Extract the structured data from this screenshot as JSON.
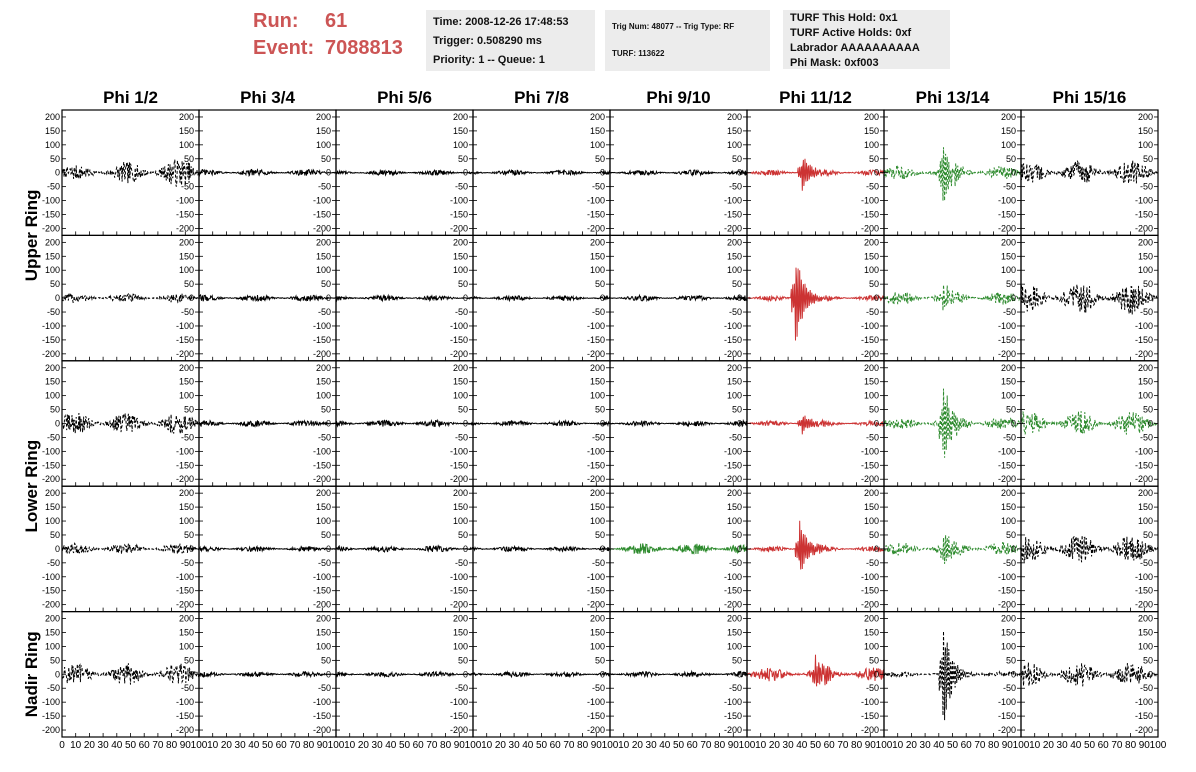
{
  "header": {
    "run_label": "Run:",
    "run_value": "61",
    "event_label": "Event:",
    "event_value": "7088813",
    "time_line": "Time: 2008-12-26 17:48:53",
    "trigger_line": "Trigger: 0.508290 ms",
    "priority_line": "Priority: 1 -- Queue: 1",
    "trig_line": "Trig Num: 48077 -- Trig Type: RF",
    "turf_line": "TURF: 113622",
    "turf_hold_line": "TURF This Hold: 0x1",
    "turf_active_line": "TURF Active Holds: 0xf",
    "labrador_line": "Labrador AAAAAAAAAA",
    "phi_mask_line": "Phi Mask: 0xf003"
  },
  "colors": {
    "normal": "#000000",
    "triggered": "#cc3333",
    "l1": "#2e8b2e"
  },
  "chart_data": {
    "type": "line",
    "columns": [
      "Phi 1/2",
      "Phi 3/4",
      "Phi 5/6",
      "Phi 7/8",
      "Phi 9/10",
      "Phi 11/12",
      "Phi 13/14",
      "Phi 15/16"
    ],
    "ring_labels": [
      {
        "label": "Upper Ring",
        "rows": [
          0,
          1
        ]
      },
      {
        "label": "Lower Ring",
        "rows": [
          2,
          3
        ]
      },
      {
        "label": "Nadir Ring",
        "rows": [
          4
        ]
      }
    ],
    "ylim": [
      -225,
      225
    ],
    "yticks": [
      -200,
      -150,
      -100,
      -50,
      0,
      50,
      100,
      150,
      200
    ],
    "xlim": [
      0,
      100
    ],
    "xticks": [
      0,
      10,
      20,
      30,
      40,
      50,
      60,
      70,
      80,
      90,
      100
    ],
    "xtick_labels_first": [
      "0",
      "10",
      "20",
      "30",
      "40",
      "50",
      "60",
      "70",
      "80",
      "90",
      "100"
    ],
    "xtick_labels_other": [
      "10",
      "20",
      "30",
      "40",
      "50",
      "60",
      "70",
      "80",
      "90",
      "100"
    ],
    "panels": [
      [
        {
          "color": "normal",
          "dash": true,
          "amp": 40,
          "pulse": 0,
          "grow": 1
        },
        {
          "color": "normal",
          "dash": false,
          "amp": 12,
          "pulse": 0
        },
        {
          "color": "normal",
          "dash": false,
          "amp": 10,
          "pulse": 0
        },
        {
          "color": "normal",
          "dash": false,
          "amp": 10,
          "pulse": 0
        },
        {
          "color": "normal",
          "dash": false,
          "amp": 10,
          "pulse": 0
        },
        {
          "color": "triggered",
          "dash": false,
          "amp": 10,
          "pulse": 70,
          "pc": 40
        },
        {
          "color": "l1",
          "dash": true,
          "amp": 25,
          "pulse": 130,
          "pc": 43
        },
        {
          "color": "normal",
          "dash": true,
          "amp": 45,
          "pulse": 0
        }
      ],
      [
        {
          "color": "normal",
          "dash": true,
          "amp": 18,
          "pulse": 0
        },
        {
          "color": "normal",
          "dash": false,
          "amp": 12,
          "pulse": 0
        },
        {
          "color": "normal",
          "dash": false,
          "amp": 10,
          "pulse": 0
        },
        {
          "color": "normal",
          "dash": false,
          "amp": 10,
          "pulse": 0
        },
        {
          "color": "normal",
          "dash": false,
          "amp": 10,
          "pulse": 0
        },
        {
          "color": "triggered",
          "dash": false,
          "amp": 10,
          "pulse": 180,
          "pc": 35
        },
        {
          "color": "l1",
          "dash": true,
          "amp": 25,
          "pulse": 40,
          "pc": 43
        },
        {
          "color": "normal",
          "dash": true,
          "amp": 60,
          "pulse": 0
        }
      ],
      [
        {
          "color": "normal",
          "dash": true,
          "amp": 40,
          "pulse": 0
        },
        {
          "color": "normal",
          "dash": false,
          "amp": 12,
          "pulse": 0
        },
        {
          "color": "normal",
          "dash": false,
          "amp": 12,
          "pulse": 0
        },
        {
          "color": "normal",
          "dash": false,
          "amp": 10,
          "pulse": 0
        },
        {
          "color": "normal",
          "dash": false,
          "amp": 10,
          "pulse": 0
        },
        {
          "color": "triggered",
          "dash": false,
          "amp": 10,
          "pulse": 40,
          "pc": 40
        },
        {
          "color": "l1",
          "dash": true,
          "amp": 25,
          "pulse": 150,
          "pc": 43
        },
        {
          "color": "l1",
          "dash": true,
          "amp": 45,
          "pulse": 0
        }
      ],
      [
        {
          "color": "normal",
          "dash": true,
          "amp": 20,
          "pulse": 0
        },
        {
          "color": "normal",
          "dash": false,
          "amp": 10,
          "pulse": 0
        },
        {
          "color": "normal",
          "dash": false,
          "amp": 12,
          "pulse": 0
        },
        {
          "color": "normal",
          "dash": false,
          "amp": 10,
          "pulse": 0
        },
        {
          "color": "l1",
          "dash": false,
          "amp": 20,
          "pulse": 0
        },
        {
          "color": "triggered",
          "dash": false,
          "amp": 10,
          "pulse": 110,
          "pc": 38
        },
        {
          "color": "l1",
          "dash": true,
          "amp": 25,
          "pulse": 60,
          "pc": 43
        },
        {
          "color": "normal",
          "dash": true,
          "amp": 50,
          "pulse": 0
        }
      ],
      [
        {
          "color": "normal",
          "dash": true,
          "amp": 40,
          "pulse": 0
        },
        {
          "color": "normal",
          "dash": false,
          "amp": 10,
          "pulse": 0
        },
        {
          "color": "normal",
          "dash": false,
          "amp": 10,
          "pulse": 0
        },
        {
          "color": "normal",
          "dash": false,
          "amp": 10,
          "pulse": 0
        },
        {
          "color": "normal",
          "dash": false,
          "amp": 10,
          "pulse": 0
        },
        {
          "color": "triggered",
          "dash": false,
          "amp": 25,
          "pulse": 55,
          "pc": 50
        },
        {
          "color": "normal",
          "dash": true,
          "amp": 10,
          "pulse": 200,
          "pc": 43
        },
        {
          "color": "normal",
          "dash": true,
          "amp": 45,
          "pulse": 0
        }
      ]
    ]
  }
}
